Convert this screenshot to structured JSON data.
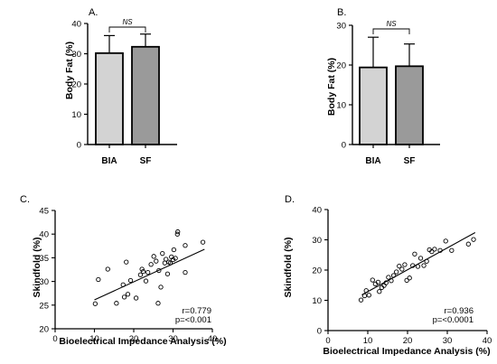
{
  "chart_data": [
    {
      "panel": "A.",
      "type": "bar",
      "categories": [
        "BIA",
        "SF"
      ],
      "values": [
        30.2,
        32.3
      ],
      "errors": [
        5.8,
        4.2
      ],
      "ylabel": "Body Fat (%)",
      "ylim": [
        0,
        40
      ],
      "yticks": [
        0,
        10,
        20,
        30,
        40
      ],
      "colors": [
        "#d3d3d3",
        "#9a9a9a"
      ],
      "significance": "NS"
    },
    {
      "panel": "B.",
      "type": "bar",
      "categories": [
        "BIA",
        "SF"
      ],
      "values": [
        19.4,
        19.7
      ],
      "errors": [
        7.6,
        5.6
      ],
      "ylabel": "Body Fat (%)",
      "ylim": [
        0,
        30
      ],
      "yticks": [
        0,
        10,
        20,
        30
      ],
      "colors": [
        "#d3d3d3",
        "#9a9a9a"
      ],
      "significance": "NS"
    },
    {
      "panel": "C.",
      "type": "scatter",
      "xlabel": "Bioelectrical Impedance Analysis (%)",
      "ylabel": "Skindfold (%)",
      "xlim": [
        0,
        40
      ],
      "ylim": [
        20,
        45
      ],
      "xticks": [
        0,
        10,
        20,
        30,
        40
      ],
      "yticks": [
        20,
        25,
        30,
        35,
        40,
        45
      ],
      "points": [
        [
          10.2,
          25.3
        ],
        [
          11,
          30.4
        ],
        [
          13.4,
          32.6
        ],
        [
          15.6,
          25.4
        ],
        [
          17.3,
          29.3
        ],
        [
          17.6,
          26.7
        ],
        [
          18.1,
          34.1
        ],
        [
          18.5,
          27.3
        ],
        [
          19.2,
          30.2
        ],
        [
          20.6,
          26.5
        ],
        [
          21.7,
          31.4
        ],
        [
          22.1,
          32.6
        ],
        [
          22.4,
          32.1
        ],
        [
          23.1,
          30.1
        ],
        [
          23.6,
          31.9
        ],
        [
          24.4,
          33.6
        ],
        [
          25.1,
          35.3
        ],
        [
          25.7,
          34.3
        ],
        [
          26.4,
          32.3
        ],
        [
          26.2,
          25.4
        ],
        [
          26.9,
          28.8
        ],
        [
          27.3,
          35.9
        ],
        [
          27.9,
          33.9
        ],
        [
          28.2,
          34.7
        ],
        [
          28.6,
          31.6
        ],
        [
          28.9,
          34.1
        ],
        [
          29.3,
          33.9
        ],
        [
          29.6,
          35.2
        ],
        [
          30,
          34.6
        ],
        [
          30.2,
          36.7
        ],
        [
          30.6,
          34.9
        ],
        [
          31.1,
          40
        ],
        [
          31.2,
          40.5
        ],
        [
          33.1,
          37.6
        ],
        [
          33.1,
          31.9
        ],
        [
          37.6,
          38.3
        ]
      ],
      "fit": [
        [
          10,
          26.1
        ],
        [
          38,
          36.8
        ]
      ],
      "annotations": [
        "r=0.779",
        "p=<0.001"
      ]
    },
    {
      "panel": "D.",
      "type": "scatter",
      "xlabel": "Bioelectrical Impedance Analysis (%)",
      "ylabel": "Skindfold (%)",
      "xlim": [
        0,
        40
      ],
      "ylim": [
        0,
        40
      ],
      "xticks": [
        0,
        10,
        20,
        30,
        40
      ],
      "yticks": [
        0,
        10,
        20,
        30,
        40
      ],
      "points": [
        [
          8.3,
          10.1
        ],
        [
          9.2,
          11.5
        ],
        [
          9.6,
          13.2
        ],
        [
          10.3,
          11.7
        ],
        [
          11.2,
          16.7
        ],
        [
          11.9,
          15.4
        ],
        [
          12.6,
          16
        ],
        [
          12.9,
          12.9
        ],
        [
          13.5,
          14.2
        ],
        [
          14.1,
          14.9
        ],
        [
          14.6,
          15.8
        ],
        [
          15.2,
          17.6
        ],
        [
          15.9,
          16.5
        ],
        [
          16.5,
          18.2
        ],
        [
          17.2,
          19.4
        ],
        [
          17.9,
          21.3
        ],
        [
          18.6,
          20.3
        ],
        [
          19.3,
          21.8
        ],
        [
          19.8,
          16.6
        ],
        [
          20.5,
          17.4
        ],
        [
          21.3,
          21.5
        ],
        [
          21.8,
          25.3
        ],
        [
          22.6,
          21.2
        ],
        [
          23.3,
          23.9
        ],
        [
          24.1,
          21.5
        ],
        [
          24.8,
          22.9
        ],
        [
          25.5,
          26.7
        ],
        [
          26.1,
          26.1
        ],
        [
          26.8,
          26.9
        ],
        [
          28.2,
          26.5
        ],
        [
          29.6,
          29.6
        ],
        [
          31.1,
          26.5
        ],
        [
          35.3,
          28.6
        ],
        [
          36.6,
          30.1
        ]
      ],
      "fit": [
        [
          8.5,
          11.8
        ],
        [
          37,
          32.4
        ]
      ],
      "annotations": [
        "r=0.936",
        "p=<0.0001"
      ]
    }
  ]
}
